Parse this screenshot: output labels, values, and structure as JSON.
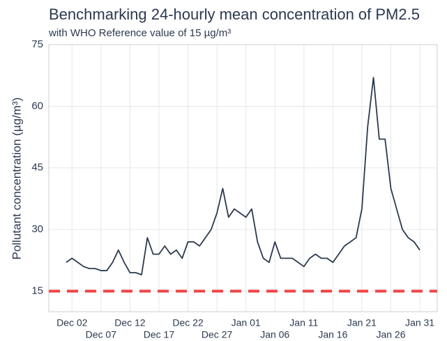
{
  "chart_data": {
    "type": "line",
    "title": "Benchmarking 24-hourly mean concentration of PM2.5",
    "subtitle": "with WHO Reference value of 15 µg/m³",
    "y_label": "Pollutant concentration (µg/m³)",
    "x": [
      "Dec 01",
      "Dec 02",
      "Dec 03",
      "Dec 04",
      "Dec 05",
      "Dec 06",
      "Dec 07",
      "Dec 08",
      "Dec 09",
      "Dec 10",
      "Dec 11",
      "Dec 12",
      "Dec 13",
      "Dec 14",
      "Dec 15",
      "Dec 16",
      "Dec 17",
      "Dec 18",
      "Dec 19",
      "Dec 20",
      "Dec 21",
      "Dec 22",
      "Dec 23",
      "Dec 24",
      "Dec 25",
      "Dec 26",
      "Dec 27",
      "Dec 28",
      "Dec 29",
      "Dec 30",
      "Dec 31",
      "Jan 01",
      "Jan 02",
      "Jan 03",
      "Jan 04",
      "Jan 05",
      "Jan 06",
      "Jan 07",
      "Jan 08",
      "Jan 09",
      "Jan 10",
      "Jan 11",
      "Jan 12",
      "Jan 13",
      "Jan 14",
      "Jan 15",
      "Jan 16",
      "Jan 17",
      "Jan 18",
      "Jan 19",
      "Jan 20",
      "Jan 21",
      "Jan 22",
      "Jan 23",
      "Jan 24",
      "Jan 25",
      "Jan 26",
      "Jan 27",
      "Jan 28",
      "Jan 29",
      "Jan 30",
      "Jan 31"
    ],
    "series": [
      {
        "color": "#2b3a4f",
        "values": [
          22,
          23,
          22,
          21,
          20.5,
          20.5,
          20,
          20,
          22,
          25,
          22,
          19.5,
          19.5,
          19,
          28,
          24,
          24,
          26,
          24,
          25,
          23,
          27,
          27,
          26,
          28,
          30,
          34,
          40,
          33,
          35,
          34,
          33,
          35,
          27,
          23,
          22,
          27,
          23,
          23,
          23,
          22,
          21,
          23,
          24,
          23,
          23,
          22,
          24,
          26,
          27,
          28,
          35,
          55,
          67,
          52,
          52,
          40,
          35,
          30,
          28,
          27,
          25
        ]
      }
    ],
    "reference_line": {
      "value": 15,
      "color": "#ef4444"
    },
    "xlim": [
      "Nov 28",
      "Feb 03"
    ],
    "xticks": [
      "Dec 02",
      "Dec 07",
      "Dec 12",
      "Dec 17",
      "Dec 22",
      "Dec 27",
      "Jan 01",
      "Jan 06",
      "Jan 11",
      "Jan 16",
      "Jan 21",
      "Jan 26",
      "Jan 31"
    ],
    "ylim": [
      10,
      75
    ],
    "yticks": [
      15,
      30,
      45,
      60,
      75
    ],
    "grid": true
  }
}
